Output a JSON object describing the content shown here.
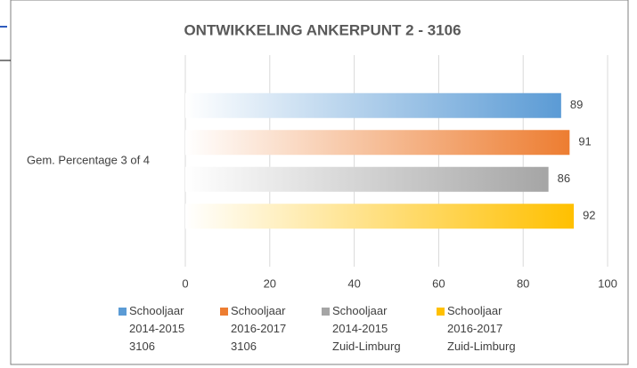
{
  "chart_data": {
    "type": "hbar",
    "title": "ONTWIKKELING ANKERPUNT 2 - 3106",
    "categories": [
      "Gem. Percentage 3 of 4"
    ],
    "series": [
      {
        "name": "Schooljaar 2014-2015 3106",
        "color": "#5b9bd5",
        "values": [
          89
        ]
      },
      {
        "name": "Schooljaar 2016-2017 3106",
        "color": "#ed7d31",
        "values": [
          91
        ]
      },
      {
        "name": "Schooljaar 2014-2015 Zuid-Limburg",
        "color": "#a5a5a5",
        "values": [
          86
        ]
      },
      {
        "name": "Schooljaar 2016-2017 Zuid-Limburg",
        "color": "#ffc000",
        "values": [
          92
        ]
      }
    ],
    "xlim": [
      0,
      100
    ],
    "xticks": [
      0,
      20,
      40,
      60,
      80,
      100
    ],
    "grid": true,
    "legend": "bottom"
  }
}
